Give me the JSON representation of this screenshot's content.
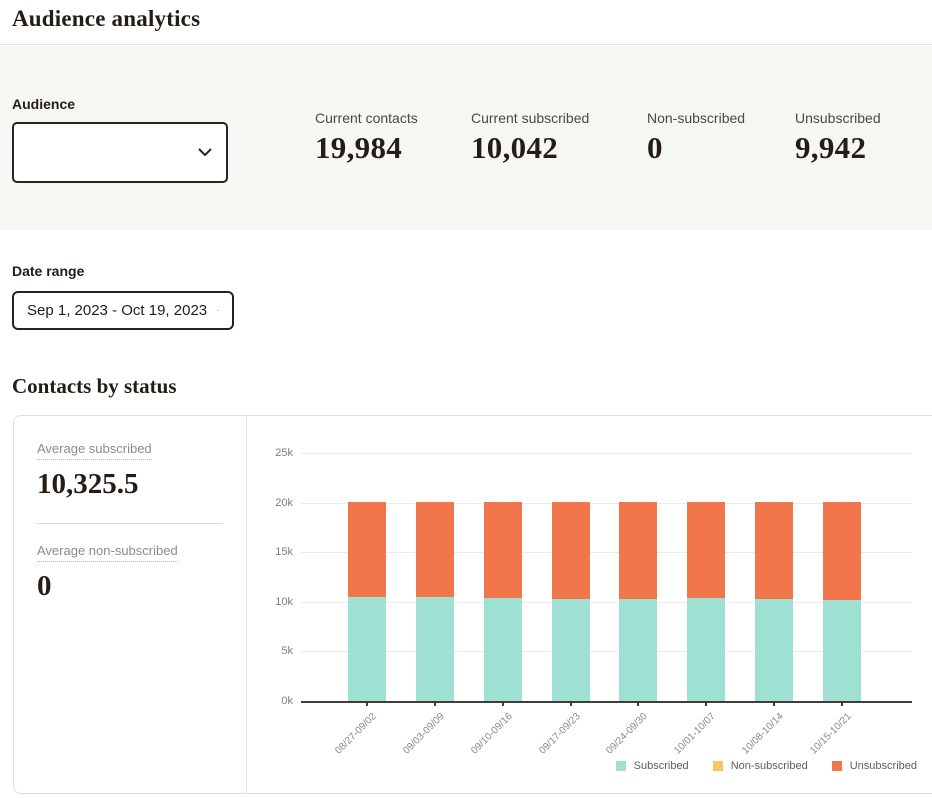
{
  "page": {
    "title": "Audience analytics"
  },
  "audience": {
    "label": "Audience",
    "selected": ""
  },
  "stats": [
    {
      "label": "Current contacts",
      "value": "19,984"
    },
    {
      "label": "Current subscribed",
      "value": "10,042"
    },
    {
      "label": "Non-subscribed",
      "value": "0"
    },
    {
      "label": "Unsubscribed",
      "value": "9,942"
    }
  ],
  "date_range": {
    "label": "Date range",
    "selected": "Sep 1, 2023 - Oct 19, 2023"
  },
  "contacts_section": {
    "title": "Contacts by status",
    "averages": [
      {
        "label": "Average subscribed",
        "value": "10,325.5"
      },
      {
        "label": "Average non-subscribed",
        "value": "0"
      }
    ]
  },
  "colors": {
    "subscribed": "#9EE0D2",
    "non_subscribed": "#F2C960",
    "unsubscribed": "#F2764C",
    "axis": "#3F3E3B",
    "gridline": "#EBEBE9"
  },
  "chart_data": {
    "type": "bar",
    "stacked": true,
    "title": "Contacts by status",
    "categories": [
      "08/27-09/02",
      "09/03-09/09",
      "09/10-09/16",
      "09/17-09/23",
      "09/24-09/30",
      "10/01-10/07",
      "10/08-10/14",
      "10/15-10/21"
    ],
    "series": [
      {
        "name": "Subscribed",
        "color": "#9EE0D2",
        "values": [
          10450,
          10500,
          10400,
          10250,
          10250,
          10350,
          10250,
          10154
        ]
      },
      {
        "name": "Non-subscribed",
        "color": "#F2C960",
        "values": [
          0,
          0,
          0,
          0,
          0,
          0,
          0,
          0
        ]
      },
      {
        "name": "Unsubscribed",
        "color": "#F2764C",
        "values": [
          9650,
          9600,
          9700,
          9850,
          9850,
          9750,
          9850,
          9896
        ]
      }
    ],
    "ylim": [
      0,
      25000
    ],
    "ytick_labels": [
      "0k",
      "5k",
      "10k",
      "15k",
      "20k",
      "25k"
    ],
    "ytick_values": [
      0,
      5000,
      10000,
      15000,
      20000,
      25000
    ],
    "grid": true,
    "legend": [
      "Subscribed",
      "Non-subscribed",
      "Unsubscribed"
    ],
    "legend_position": "bottom-right",
    "xlabel_rotation": -45
  }
}
